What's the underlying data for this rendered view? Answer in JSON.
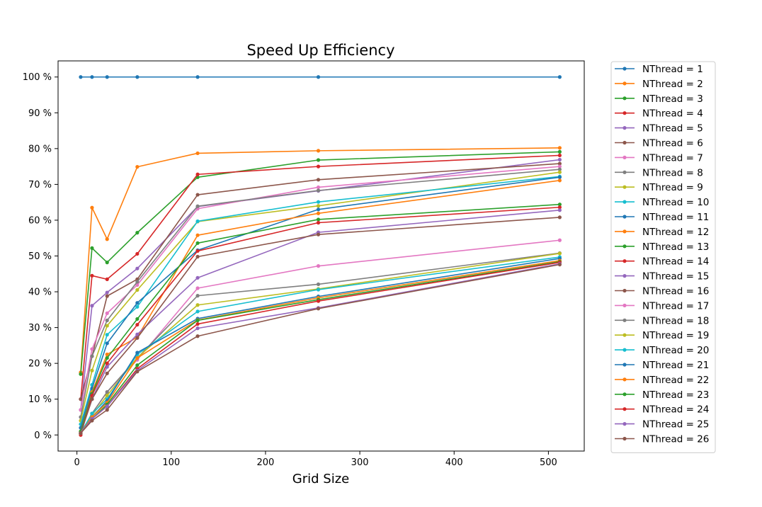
{
  "chart_data": {
    "type": "line",
    "title": "Speed Up Efficiency",
    "xlabel": "Grid Size",
    "ylabel": "",
    "x": [
      2,
      4,
      16,
      32,
      64,
      128,
      256,
      512
    ],
    "xlim": [
      -20,
      538
    ],
    "ylim": [
      -4.5,
      104.5
    ],
    "xticks": [
      0,
      100,
      200,
      300,
      400,
      500
    ],
    "yticks": [
      0,
      10,
      20,
      30,
      40,
      50,
      60,
      70,
      80,
      90,
      100
    ],
    "ytick_suffix": " %",
    "grid": false,
    "legend_position": "outside-right",
    "series": [
      {
        "name": "NThread = 1",
        "color": "#1f77b4",
        "values": [
          null,
          100,
          100,
          100,
          100,
          100,
          100,
          100
        ]
      },
      {
        "name": "NThread = 2",
        "color": "#ff7f0e",
        "values": [
          null,
          17.5,
          63.5,
          54.7,
          74.9,
          78.7,
          79.4,
          80.2
        ]
      },
      {
        "name": "NThread = 3",
        "color": "#2ca02c",
        "values": [
          null,
          17.0,
          52.2,
          48.2,
          56.5,
          72.0,
          76.8,
          79.1
        ]
      },
      {
        "name": "NThread = 4",
        "color": "#d62728",
        "values": [
          null,
          10.0,
          44.5,
          43.5,
          50.6,
          72.8,
          75.0,
          78.1
        ]
      },
      {
        "name": "NThread = 5",
        "color": "#9467bd",
        "values": [
          null,
          7.0,
          36.1,
          39.8,
          46.5,
          63.8,
          68.2,
          76.9
        ]
      },
      {
        "name": "NThread = 6",
        "color": "#8c564b",
        "values": [
          null,
          10.0,
          22.0,
          38.8,
          43.5,
          67.1,
          71.3,
          75.8
        ]
      },
      {
        "name": "NThread = 7",
        "color": "#e377c2",
        "values": [
          null,
          7.0,
          24.0,
          34.0,
          41.9,
          63.2,
          69.2,
          75.0
        ]
      },
      {
        "name": "NThread = 8",
        "color": "#7f7f7f",
        "values": [
          null,
          5.0,
          22.0,
          32.0,
          42.8,
          63.9,
          68.3,
          74.2
        ]
      },
      {
        "name": "NThread = 9",
        "color": "#bcbd22",
        "values": [
          null,
          4.0,
          18.0,
          30.5,
          40.5,
          59.6,
          64.0,
          73.4
        ]
      },
      {
        "name": "NThread = 10",
        "color": "#17becf",
        "values": [
          null,
          3.0,
          14.0,
          28.0,
          35.8,
          59.7,
          65.1,
          72.2
        ]
      },
      {
        "name": "NThread = 11",
        "color": "#1f77b4",
        "values": [
          null,
          2.0,
          13.0,
          25.6,
          36.9,
          51.6,
          63.0,
          72.0
        ]
      },
      {
        "name": "NThread = 12",
        "color": "#ff7f0e",
        "values": [
          null,
          1.0,
          12.0,
          22.5,
          27.3,
          55.8,
          61.9,
          71.1
        ]
      },
      {
        "name": "NThread = 13",
        "color": "#2ca02c",
        "values": [
          null,
          1.0,
          11.5,
          21.5,
          32.4,
          53.6,
          60.2,
          64.4
        ]
      },
      {
        "name": "NThread = 14",
        "color": "#d62728",
        "values": [
          null,
          0.0,
          11.0,
          20.0,
          30.8,
          51.4,
          59.3,
          63.6
        ]
      },
      {
        "name": "NThread = 15",
        "color": "#9467bd",
        "values": [
          null,
          0.5,
          10.0,
          19.0,
          28.1,
          43.9,
          56.6,
          62.8
        ]
      },
      {
        "name": "NThread = 16",
        "color": "#8c564b",
        "values": [
          null,
          0.5,
          10.0,
          17.2,
          27.1,
          49.8,
          56.0,
          60.8
        ]
      },
      {
        "name": "NThread = 17",
        "color": "#e377c2",
        "values": [
          null,
          0.5,
          6.0,
          12.0,
          21.0,
          41.0,
          47.2,
          54.4
        ]
      },
      {
        "name": "NThread = 18",
        "color": "#7f7f7f",
        "values": [
          null,
          0.5,
          6.0,
          12.0,
          21.5,
          38.9,
          42.1,
          50.8
        ]
      },
      {
        "name": "NThread = 19",
        "color": "#bcbd22",
        "values": [
          null,
          0.5,
          5.5,
          11.0,
          21.6,
          36.3,
          40.8,
          50.7
        ]
      },
      {
        "name": "NThread = 20",
        "color": "#17becf",
        "values": [
          null,
          0.5,
          6.0,
          10.0,
          22.5,
          34.5,
          40.6,
          49.7
        ]
      },
      {
        "name": "NThread = 21",
        "color": "#1f77b4",
        "values": [
          null,
          0.5,
          5.0,
          9.5,
          23.0,
          32.5,
          38.7,
          49.3
        ]
      },
      {
        "name": "NThread = 22",
        "color": "#ff7f0e",
        "values": [
          null,
          0.5,
          5.0,
          9.0,
          21.5,
          32.1,
          38.3,
          48.7
        ]
      },
      {
        "name": "NThread = 23",
        "color": "#2ca02c",
        "values": [
          null,
          0.5,
          4.5,
          8.5,
          19.5,
          32.0,
          37.8,
          48.4
        ]
      },
      {
        "name": "NThread = 24",
        "color": "#d62728",
        "values": [
          null,
          0.5,
          4.5,
          8.0,
          18.5,
          31.0,
          37.4,
          48.2
        ]
      },
      {
        "name": "NThread = 25",
        "color": "#9467bd",
        "values": [
          null,
          0.5,
          4.5,
          8.0,
          18.0,
          29.8,
          35.5,
          47.8
        ]
      },
      {
        "name": "NThread = 26",
        "color": "#8c564b",
        "values": [
          null,
          0.5,
          4.0,
          7.0,
          17.7,
          27.6,
          35.3,
          47.6
        ]
      }
    ]
  }
}
